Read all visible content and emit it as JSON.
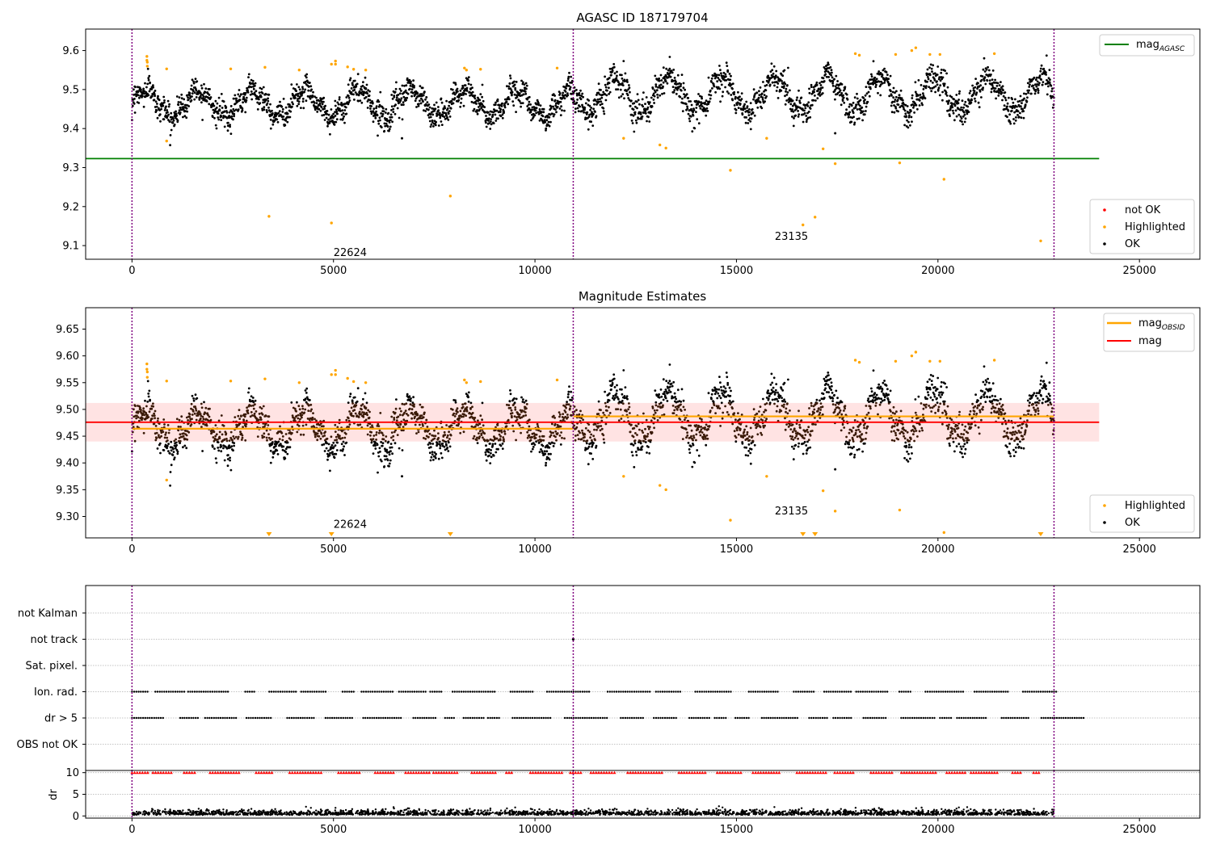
{
  "chart_data": [
    {
      "type": "scatter",
      "title": "AGASC ID 187179704",
      "xlim": [
        -1150,
        26500
      ],
      "ylim": [
        9.065,
        9.655
      ],
      "xticks": [
        0,
        5000,
        10000,
        15000,
        20000,
        25000
      ],
      "xtick_labels": [
        "0",
        "5000",
        "10000",
        "15000",
        "20000",
        "25000"
      ],
      "yticks": [
        9.1,
        9.2,
        9.3,
        9.4,
        9.5,
        9.6
      ],
      "ytick_labels": [
        "9.1",
        "9.2",
        "9.3",
        "9.4",
        "9.5",
        "9.6"
      ],
      "obsid_boundaries": [
        0,
        10950,
        22880
      ],
      "obsids": [
        {
          "label": "22624",
          "x_start": 0,
          "x_end": 10950,
          "ok_mean": 9.465,
          "ok_amplitude": 0.035,
          "ok_spread": 0.045
        },
        {
          "label": "23135",
          "x_start": 10950,
          "x_end": 22880,
          "ok_mean": 9.487,
          "ok_amplitude": 0.045,
          "ok_spread": 0.05
        }
      ],
      "obsid_label_y": 9.08,
      "obsid_label_x_offset": 5000,
      "mag_agasc": 9.323,
      "mag_agasc_xrange": [
        -1150,
        24000
      ],
      "highlighted_points": [
        {
          "x": 370,
          "y": 9.585
        },
        {
          "x": 370,
          "y": 9.575
        },
        {
          "x": 380,
          "y": 9.57
        },
        {
          "x": 380,
          "y": 9.56
        },
        {
          "x": 860,
          "y": 9.553
        },
        {
          "x": 860,
          "y": 9.368
        },
        {
          "x": 2450,
          "y": 9.553
        },
        {
          "x": 3300,
          "y": 9.557
        },
        {
          "x": 3400,
          "y": 9.175
        },
        {
          "x": 4150,
          "y": 9.55
        },
        {
          "x": 4950,
          "y": 9.565
        },
        {
          "x": 4950,
          "y": 9.158
        },
        {
          "x": 5050,
          "y": 9.573
        },
        {
          "x": 5050,
          "y": 9.565
        },
        {
          "x": 5350,
          "y": 9.558
        },
        {
          "x": 5500,
          "y": 9.552
        },
        {
          "x": 5800,
          "y": 9.55
        },
        {
          "x": 7900,
          "y": 9.227
        },
        {
          "x": 8250,
          "y": 9.555
        },
        {
          "x": 8300,
          "y": 9.55
        },
        {
          "x": 8650,
          "y": 9.552
        },
        {
          "x": 10550,
          "y": 9.555
        },
        {
          "x": 12200,
          "y": 9.375
        },
        {
          "x": 13100,
          "y": 9.358
        },
        {
          "x": 13250,
          "y": 9.35
        },
        {
          "x": 14850,
          "y": 9.293
        },
        {
          "x": 15750,
          "y": 9.375
        },
        {
          "x": 16650,
          "y": 9.153
        },
        {
          "x": 16950,
          "y": 9.173
        },
        {
          "x": 17150,
          "y": 9.348
        },
        {
          "x": 17450,
          "y": 9.31
        },
        {
          "x": 17950,
          "y": 9.592
        },
        {
          "x": 18050,
          "y": 9.588
        },
        {
          "x": 18950,
          "y": 9.59
        },
        {
          "x": 19050,
          "y": 9.312
        },
        {
          "x": 19350,
          "y": 9.6
        },
        {
          "x": 19450,
          "y": 9.607
        },
        {
          "x": 19800,
          "y": 9.59
        },
        {
          "x": 20050,
          "y": 9.59
        },
        {
          "x": 20150,
          "y": 9.27
        },
        {
          "x": 21400,
          "y": 9.592
        },
        {
          "x": 22550,
          "y": 9.112
        }
      ],
      "outlier_ok_points": [
        {
          "x": 6700,
          "y": 9.375
        },
        {
          "x": 17450,
          "y": 9.388
        }
      ],
      "legend_upper": {
        "placement": "upper-right",
        "entries": [
          {
            "label": "mag",
            "subscript": "AGASC",
            "color": "#008000"
          }
        ]
      },
      "legend_lower": {
        "placement": "lower-right",
        "entries": [
          {
            "label": "not OK",
            "color": "#ff0000"
          },
          {
            "label": "Highlighted",
            "color": "#ffa500"
          },
          {
            "label": "OK",
            "color": "#000000"
          }
        ]
      }
    },
    {
      "type": "scatter",
      "title": "Magnitude Estimates",
      "xlim": [
        -1150,
        26500
      ],
      "ylim": [
        9.26,
        9.69
      ],
      "xticks": [
        0,
        5000,
        10000,
        15000,
        20000,
        25000
      ],
      "xtick_labels": [
        "0",
        "5000",
        "10000",
        "15000",
        "20000",
        "25000"
      ],
      "yticks": [
        9.3,
        9.35,
        9.4,
        9.45,
        9.5,
        9.55,
        9.6,
        9.65
      ],
      "ytick_labels": [
        "9.30",
        "9.35",
        "9.40",
        "9.45",
        "9.50",
        "9.55",
        "9.60",
        "9.65"
      ],
      "mag": 9.476,
      "mag_band": [
        9.44,
        9.512
      ],
      "mag_xrange": [
        -1150,
        24000
      ],
      "mag_obsid": [
        {
          "x_start": 0,
          "x_end": 10950,
          "value": 9.464
        },
        {
          "x_start": 10950,
          "x_end": 22880,
          "value": 9.487
        }
      ],
      "obsid_label_y": 9.27,
      "lower_limit_markers_x": [
        3400,
        4950,
        7900,
        16650,
        16950,
        22550
      ],
      "legend_upper": {
        "placement": "upper-right",
        "entries": [
          {
            "label": "mag",
            "subscript": "OBSID",
            "color": "#ffa500"
          },
          {
            "label": "mag",
            "subscript": "",
            "color": "#ff0000"
          }
        ]
      },
      "legend_lower": {
        "placement": "lower-right",
        "entries": [
          {
            "label": "Highlighted",
            "color": "#ffa500"
          },
          {
            "label": "OK",
            "color": "#000000"
          }
        ]
      }
    },
    {
      "type": "scatter",
      "title": "",
      "xlim": [
        -1150,
        26500
      ],
      "categories": [
        "not Kalman",
        "not track",
        "Sat. pixel.",
        "Ion. rad.",
        "dr > 5",
        "OBS not OK"
      ],
      "flag_events": {
        "not track": [
          10950
        ],
        "Ion. rad.": "intermittent",
        "dr > 5": "intermittent"
      }
    },
    {
      "type": "scatter",
      "title": "",
      "xlim": [
        -1150,
        26500
      ],
      "ylim": [
        -0.5,
        10.5
      ],
      "ylabel": "dr",
      "yticks": [
        0,
        5,
        10
      ],
      "ytick_labels": [
        "0",
        "5",
        "10"
      ],
      "xticks": [
        0,
        5000,
        10000,
        15000,
        20000,
        25000
      ],
      "xtick_labels": [
        "0",
        "5000",
        "10000",
        "15000",
        "20000",
        "25000"
      ],
      "dr_typical": [
        0,
        2.5
      ],
      "clipped_value": 10
    }
  ],
  "colors": {
    "ok": "#000000",
    "highlighted": "#ffa500",
    "not_ok": "#ff0000",
    "agasc_line": "#008000",
    "mag_line": "#ff0000",
    "mag_band": "#ffcccc",
    "obsid_line": "#ffa500",
    "boundary": "#800080",
    "grid": "#b0b0b0"
  }
}
